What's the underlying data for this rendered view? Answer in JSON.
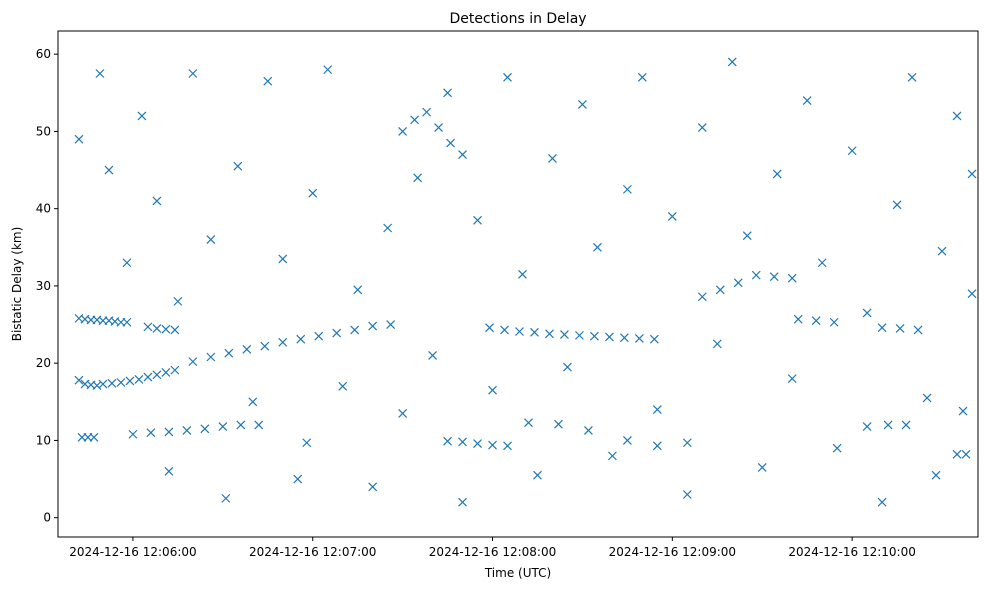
{
  "chart_data": {
    "type": "scatter",
    "title": "Detections in Delay",
    "xlabel": "Time (UTC)",
    "ylabel": "Bistatic Delay (km)",
    "marker": "x",
    "color": "#1f77b4",
    "grid": false,
    "xlim": [
      "2024-12-16 12:05:35",
      "2024-12-16 12:10:42"
    ],
    "ylim": [
      -2.5,
      63
    ],
    "xticks": [
      {
        "value": "2024-12-16 12:06:00",
        "label": "2024-12-16 12:06:00"
      },
      {
        "value": "2024-12-16 12:07:00",
        "label": "2024-12-16 12:07:00"
      },
      {
        "value": "2024-12-16 12:08:00",
        "label": "2024-12-16 12:08:00"
      },
      {
        "value": "2024-12-16 12:09:00",
        "label": "2024-12-16 12:09:00"
      },
      {
        "value": "2024-12-16 12:10:00",
        "label": "2024-12-16 12:10:00"
      }
    ],
    "yticks": [
      0,
      10,
      20,
      30,
      40,
      50,
      60
    ],
    "ytick_labels": [
      "0",
      "10",
      "20",
      "30",
      "40",
      "50",
      "60"
    ],
    "series": [
      {
        "values": [
          {
            "x": "2024-12-16 12:05:42",
            "y": 25.8
          },
          {
            "x": "2024-12-16 12:05:44",
            "y": 25.7
          },
          {
            "x": "2024-12-16 12:05:46",
            "y": 25.6
          },
          {
            "x": "2024-12-16 12:05:48",
            "y": 25.6
          },
          {
            "x": "2024-12-16 12:05:50",
            "y": 25.5
          },
          {
            "x": "2024-12-16 12:05:52",
            "y": 25.5
          },
          {
            "x": "2024-12-16 12:05:54",
            "y": 25.4
          },
          {
            "x": "2024-12-16 12:05:56",
            "y": 25.3
          },
          {
            "x": "2024-12-16 12:05:58",
            "y": 25.3
          },
          {
            "x": "2024-12-16 12:05:42",
            "y": 17.8
          },
          {
            "x": "2024-12-16 12:05:44",
            "y": 17.3
          },
          {
            "x": "2024-12-16 12:05:46",
            "y": 17.2
          },
          {
            "x": "2024-12-16 12:05:48",
            "y": 17.1
          },
          {
            "x": "2024-12-16 12:05:50",
            "y": 17.3
          },
          {
            "x": "2024-12-16 12:05:53",
            "y": 17.4
          },
          {
            "x": "2024-12-16 12:05:56",
            "y": 17.5
          },
          {
            "x": "2024-12-16 12:05:59",
            "y": 17.7
          },
          {
            "x": "2024-12-16 12:06:02",
            "y": 17.9
          },
          {
            "x": "2024-12-16 12:06:05",
            "y": 18.2
          },
          {
            "x": "2024-12-16 12:06:08",
            "y": 18.5
          },
          {
            "x": "2024-12-16 12:06:11",
            "y": 18.8
          },
          {
            "x": "2024-12-16 12:06:14",
            "y": 19.1
          },
          {
            "x": "2024-12-16 12:05:43",
            "y": 10.4
          },
          {
            "x": "2024-12-16 12:05:45",
            "y": 10.4
          },
          {
            "x": "2024-12-16 12:05:47",
            "y": 10.4
          },
          {
            "x": "2024-12-16 12:06:05",
            "y": 24.7
          },
          {
            "x": "2024-12-16 12:06:08",
            "y": 24.5
          },
          {
            "x": "2024-12-16 12:06:11",
            "y": 24.4
          },
          {
            "x": "2024-12-16 12:06:14",
            "y": 24.3
          },
          {
            "x": "2024-12-16 12:06:00",
            "y": 10.8
          },
          {
            "x": "2024-12-16 12:06:06",
            "y": 11.0
          },
          {
            "x": "2024-12-16 12:06:12",
            "y": 11.1
          },
          {
            "x": "2024-12-16 12:06:18",
            "y": 11.3
          },
          {
            "x": "2024-12-16 12:06:24",
            "y": 11.5
          },
          {
            "x": "2024-12-16 12:06:30",
            "y": 11.8
          },
          {
            "x": "2024-12-16 12:06:36",
            "y": 12.0
          },
          {
            "x": "2024-12-16 12:06:42",
            "y": 12.0
          },
          {
            "x": "2024-12-16 12:06:20",
            "y": 20.2
          },
          {
            "x": "2024-12-16 12:06:26",
            "y": 20.8
          },
          {
            "x": "2024-12-16 12:06:32",
            "y": 21.3
          },
          {
            "x": "2024-12-16 12:06:38",
            "y": 21.8
          },
          {
            "x": "2024-12-16 12:06:44",
            "y": 22.2
          },
          {
            "x": "2024-12-16 12:06:50",
            "y": 22.7
          },
          {
            "x": "2024-12-16 12:06:56",
            "y": 23.1
          },
          {
            "x": "2024-12-16 12:07:02",
            "y": 23.5
          },
          {
            "x": "2024-12-16 12:07:08",
            "y": 23.9
          },
          {
            "x": "2024-12-16 12:07:14",
            "y": 24.3
          },
          {
            "x": "2024-12-16 12:07:20",
            "y": 24.8
          },
          {
            "x": "2024-12-16 12:07:26",
            "y": 25.0
          },
          {
            "x": "2024-12-16 12:06:58",
            "y": 9.7
          },
          {
            "x": "2024-12-16 12:07:30",
            "y": 50.0
          },
          {
            "x": "2024-12-16 12:07:34",
            "y": 51.5
          },
          {
            "x": "2024-12-16 12:07:38",
            "y": 52.5
          },
          {
            "x": "2024-12-16 12:07:42",
            "y": 50.5
          },
          {
            "x": "2024-12-16 12:07:46",
            "y": 48.5
          },
          {
            "x": "2024-12-16 12:07:50",
            "y": 47.0
          },
          {
            "x": "2024-12-16 12:07:45",
            "y": 9.9
          },
          {
            "x": "2024-12-16 12:07:50",
            "y": 9.8
          },
          {
            "x": "2024-12-16 12:07:55",
            "y": 9.6
          },
          {
            "x": "2024-12-16 12:08:00",
            "y": 9.4
          },
          {
            "x": "2024-12-16 12:08:05",
            "y": 9.3
          },
          {
            "x": "2024-12-16 12:07:59",
            "y": 24.6
          },
          {
            "x": "2024-12-16 12:08:04",
            "y": 24.3
          },
          {
            "x": "2024-12-16 12:08:09",
            "y": 24.1
          },
          {
            "x": "2024-12-16 12:08:14",
            "y": 24.0
          },
          {
            "x": "2024-12-16 12:08:19",
            "y": 23.8
          },
          {
            "x": "2024-12-16 12:08:24",
            "y": 23.7
          },
          {
            "x": "2024-12-16 12:08:29",
            "y": 23.6
          },
          {
            "x": "2024-12-16 12:08:34",
            "y": 23.5
          },
          {
            "x": "2024-12-16 12:08:39",
            "y": 23.4
          },
          {
            "x": "2024-12-16 12:08:44",
            "y": 23.3
          },
          {
            "x": "2024-12-16 12:08:49",
            "y": 23.2
          },
          {
            "x": "2024-12-16 12:08:54",
            "y": 23.1
          },
          {
            "x": "2024-12-16 12:08:12",
            "y": 12.3
          },
          {
            "x": "2024-12-16 12:08:22",
            "y": 12.1
          },
          {
            "x": "2024-12-16 12:08:32",
            "y": 11.3
          },
          {
            "x": "2024-12-16 12:08:45",
            "y": 10.0
          },
          {
            "x": "2024-12-16 12:08:55",
            "y": 9.3
          },
          {
            "x": "2024-12-16 12:09:05",
            "y": 9.7
          },
          {
            "x": "2024-12-16 12:09:10",
            "y": 28.6
          },
          {
            "x": "2024-12-16 12:09:16",
            "y": 29.5
          },
          {
            "x": "2024-12-16 12:09:22",
            "y": 30.4
          },
          {
            "x": "2024-12-16 12:09:28",
            "y": 31.4
          },
          {
            "x": "2024-12-16 12:09:34",
            "y": 31.2
          },
          {
            "x": "2024-12-16 12:09:40",
            "y": 31.0
          },
          {
            "x": "2024-12-16 12:09:42",
            "y": 25.7
          },
          {
            "x": "2024-12-16 12:09:48",
            "y": 25.5
          },
          {
            "x": "2024-12-16 12:09:54",
            "y": 25.3
          },
          {
            "x": "2024-12-16 12:10:10",
            "y": 24.6
          },
          {
            "x": "2024-12-16 12:10:16",
            "y": 24.5
          },
          {
            "x": "2024-12-16 12:10:22",
            "y": 24.3
          },
          {
            "x": "2024-12-16 12:10:05",
            "y": 11.8
          },
          {
            "x": "2024-12-16 12:10:12",
            "y": 12.0
          },
          {
            "x": "2024-12-16 12:10:18",
            "y": 12.0
          },
          {
            "x": "2024-12-16 12:10:35",
            "y": 8.2
          },
          {
            "x": "2024-12-16 12:10:38",
            "y": 8.2
          },
          {
            "x": "2024-12-16 12:05:42",
            "y": 49.0
          },
          {
            "x": "2024-12-16 12:05:49",
            "y": 57.5
          },
          {
            "x": "2024-12-16 12:05:52",
            "y": 45.0
          },
          {
            "x": "2024-12-16 12:05:58",
            "y": 33.0
          },
          {
            "x": "2024-12-16 12:06:03",
            "y": 52.0
          },
          {
            "x": "2024-12-16 12:06:08",
            "y": 41.0
          },
          {
            "x": "2024-12-16 12:06:12",
            "y": 6.0
          },
          {
            "x": "2024-12-16 12:06:15",
            "y": 28.0
          },
          {
            "x": "2024-12-16 12:06:20",
            "y": 57.5
          },
          {
            "x": "2024-12-16 12:06:26",
            "y": 36.0
          },
          {
            "x": "2024-12-16 12:06:31",
            "y": 2.5
          },
          {
            "x": "2024-12-16 12:06:35",
            "y": 45.5
          },
          {
            "x": "2024-12-16 12:06:40",
            "y": 15.0
          },
          {
            "x": "2024-12-16 12:06:45",
            "y": 56.5
          },
          {
            "x": "2024-12-16 12:06:50",
            "y": 33.5
          },
          {
            "x": "2024-12-16 12:06:55",
            "y": 5.0
          },
          {
            "x": "2024-12-16 12:07:00",
            "y": 42.0
          },
          {
            "x": "2024-12-16 12:07:05",
            "y": 58.0
          },
          {
            "x": "2024-12-16 12:07:10",
            "y": 17.0
          },
          {
            "x": "2024-12-16 12:07:15",
            "y": 29.5
          },
          {
            "x": "2024-12-16 12:07:20",
            "y": 4.0
          },
          {
            "x": "2024-12-16 12:07:25",
            "y": 37.5
          },
          {
            "x": "2024-12-16 12:07:30",
            "y": 13.5
          },
          {
            "x": "2024-12-16 12:07:35",
            "y": 44.0
          },
          {
            "x": "2024-12-16 12:07:40",
            "y": 21.0
          },
          {
            "x": "2024-12-16 12:07:45",
            "y": 55.0
          },
          {
            "x": "2024-12-16 12:07:50",
            "y": 2.0
          },
          {
            "x": "2024-12-16 12:07:55",
            "y": 38.5
          },
          {
            "x": "2024-12-16 12:08:00",
            "y": 16.5
          },
          {
            "x": "2024-12-16 12:08:05",
            "y": 57.0
          },
          {
            "x": "2024-12-16 12:08:10",
            "y": 31.5
          },
          {
            "x": "2024-12-16 12:08:15",
            "y": 5.5
          },
          {
            "x": "2024-12-16 12:08:20",
            "y": 46.5
          },
          {
            "x": "2024-12-16 12:08:25",
            "y": 19.5
          },
          {
            "x": "2024-12-16 12:08:30",
            "y": 53.5
          },
          {
            "x": "2024-12-16 12:08:35",
            "y": 35.0
          },
          {
            "x": "2024-12-16 12:08:40",
            "y": 8.0
          },
          {
            "x": "2024-12-16 12:08:45",
            "y": 42.5
          },
          {
            "x": "2024-12-16 12:08:50",
            "y": 57.0
          },
          {
            "x": "2024-12-16 12:08:55",
            "y": 14.0
          },
          {
            "x": "2024-12-16 12:09:00",
            "y": 39.0
          },
          {
            "x": "2024-12-16 12:09:05",
            "y": 3.0
          },
          {
            "x": "2024-12-16 12:09:10",
            "y": 50.5
          },
          {
            "x": "2024-12-16 12:09:15",
            "y": 22.5
          },
          {
            "x": "2024-12-16 12:09:20",
            "y": 59.0
          },
          {
            "x": "2024-12-16 12:09:25",
            "y": 36.5
          },
          {
            "x": "2024-12-16 12:09:30",
            "y": 6.5
          },
          {
            "x": "2024-12-16 12:09:35",
            "y": 44.5
          },
          {
            "x": "2024-12-16 12:09:40",
            "y": 18.0
          },
          {
            "x": "2024-12-16 12:09:45",
            "y": 54.0
          },
          {
            "x": "2024-12-16 12:09:50",
            "y": 33.0
          },
          {
            "x": "2024-12-16 12:09:55",
            "y": 9.0
          },
          {
            "x": "2024-12-16 12:10:00",
            "y": 47.5
          },
          {
            "x": "2024-12-16 12:10:05",
            "y": 26.5
          },
          {
            "x": "2024-12-16 12:10:10",
            "y": 2.0
          },
          {
            "x": "2024-12-16 12:10:15",
            "y": 40.5
          },
          {
            "x": "2024-12-16 12:10:20",
            "y": 57.0
          },
          {
            "x": "2024-12-16 12:10:25",
            "y": 15.5
          },
          {
            "x": "2024-12-16 12:10:30",
            "y": 34.5
          },
          {
            "x": "2024-12-16 12:10:35",
            "y": 52.0
          },
          {
            "x": "2024-12-16 12:10:40",
            "y": 44.5
          },
          {
            "x": "2024-12-16 12:10:40",
            "y": 29.0
          },
          {
            "x": "2024-12-16 12:10:37",
            "y": 13.8
          },
          {
            "x": "2024-12-16 12:10:28",
            "y": 5.5
          }
        ]
      }
    ]
  }
}
